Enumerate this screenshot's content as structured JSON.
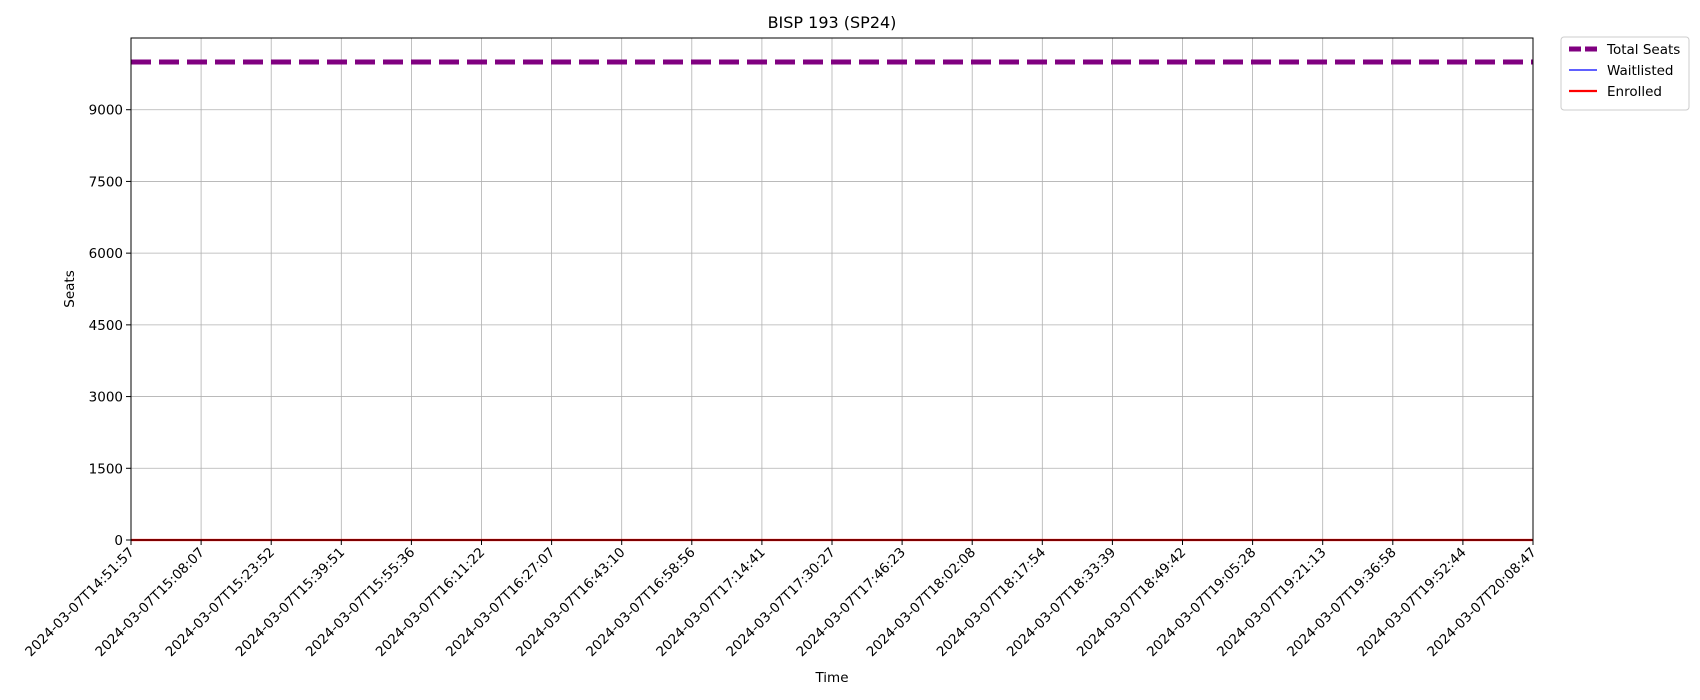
{
  "chart_data": {
    "type": "line",
    "title": "BISP 193 (SP24)",
    "xlabel": "Time",
    "ylabel": "Seats",
    "x": [
      "2024-03-07T14:51:57",
      "2024-03-07T15:08:07",
      "2024-03-07T15:23:52",
      "2024-03-07T15:39:51",
      "2024-03-07T15:55:36",
      "2024-03-07T16:11:22",
      "2024-03-07T16:27:07",
      "2024-03-07T16:43:10",
      "2024-03-07T16:58:56",
      "2024-03-07T17:14:41",
      "2024-03-07T17:30:27",
      "2024-03-07T17:46:23",
      "2024-03-07T18:02:08",
      "2024-03-07T18:17:54",
      "2024-03-07T18:33:39",
      "2024-03-07T18:49:42",
      "2024-03-07T19:05:28",
      "2024-03-07T19:21:13",
      "2024-03-07T19:36:58",
      "2024-03-07T19:52:44",
      "2024-03-07T20:08:47"
    ],
    "yticks": [
      0,
      1500,
      3000,
      4500,
      6000,
      7500,
      9000
    ],
    "ylim": [
      0,
      10500
    ],
    "grid": true,
    "legend_position": "outside-top-right",
    "series": [
      {
        "name": "Total Seats",
        "color": "#800080",
        "style": "dashed",
        "values": [
          9999,
          9999,
          9999,
          9999,
          9999,
          9999,
          9999,
          9999,
          9999,
          9999,
          9999,
          9999,
          9999,
          9999,
          9999,
          9999,
          9999,
          9999,
          9999,
          9999,
          9999
        ]
      },
      {
        "name": "Waitlisted",
        "color": "#0000ff",
        "style": "solid-thin",
        "values": [
          0,
          0,
          0,
          0,
          0,
          0,
          0,
          0,
          0,
          0,
          0,
          0,
          0,
          0,
          0,
          0,
          0,
          0,
          0,
          0,
          0
        ]
      },
      {
        "name": "Enrolled",
        "color": "#ff0000",
        "style": "solid",
        "values": [
          0,
          0,
          0,
          0,
          0,
          0,
          0,
          0,
          0,
          0,
          0,
          0,
          0,
          0,
          0,
          0,
          0,
          0,
          0,
          0,
          0
        ]
      }
    ]
  }
}
